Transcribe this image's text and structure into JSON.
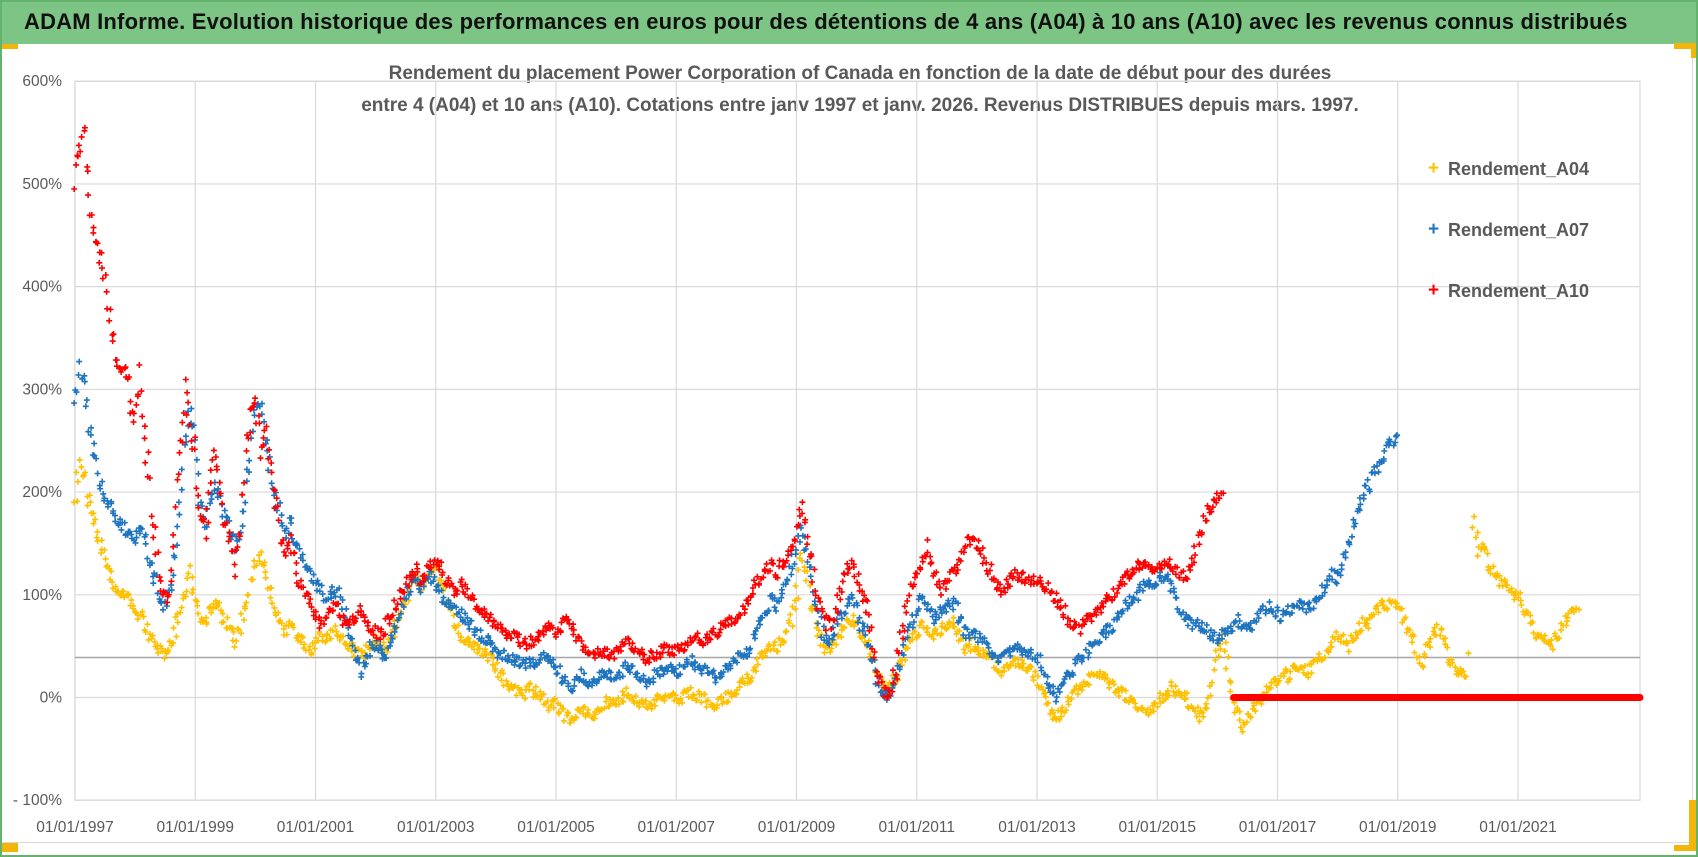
{
  "header": {
    "title": "ADAM Informe. Evolution historique des performances en euros pour des détentions de 4 ans (A04) à 10 ans (A10) avec les revenus connus distribués"
  },
  "colors": {
    "header_green": "#7cc584",
    "frame_green": "#63b36d",
    "gold_accent": "#f2b50a",
    "grid": "#d9d9d9",
    "reference_line": "#a6a6a6",
    "axis_text": "#595959",
    "title_text": "#595959"
  },
  "chart_data": {
    "type": "scatter",
    "title_line1": "Rendement du placement Power Corporation of Canada en fonction de la date de début pour des durées",
    "title_line2": "entre 4 (A04) et 10 ans (A10). Cotations entre janv 1997 et janv. 2026. Revenus DISTRIBUES depuis mars. 1997.",
    "marker": "plus",
    "grid": true,
    "legend_position": "right",
    "x_axis": {
      "tick_labels": [
        "01/01/1997",
        "01/01/1999",
        "01/01/2001",
        "01/01/2003",
        "01/01/2005",
        "01/01/2007",
        "01/01/2009",
        "01/01/2011",
        "01/01/2013",
        "01/01/2015",
        "01/01/2017",
        "01/01/2019",
        "01/01/2021"
      ],
      "start_year": 1997,
      "tick_interval_years": 2,
      "max_year_visible": 2023.0
    },
    "y_axis": {
      "tick_labels": [
        "600%",
        "500%",
        "400%",
        "300%",
        "200%",
        "100%",
        "0%",
        "- 100%"
      ],
      "tick_values": [
        600,
        500,
        400,
        300,
        200,
        100,
        0,
        -100
      ],
      "unit": "%",
      "min": -100,
      "max": 600
    },
    "reference_line_pct": 39,
    "a10_pending_zero_line": {
      "value_pct": 0,
      "from": "2016-04",
      "to": "chart-right-edge",
      "color": "#ff0000"
    },
    "series": [
      {
        "name": "Rendement_A04",
        "color": "#ffc000",
        "start": "1997-01",
        "interval": "monthly",
        "values": [
          195,
          225,
          210,
          185,
          170,
          150,
          130,
          120,
          110,
          105,
          100,
          95,
          90,
          80,
          70,
          60,
          50,
          45,
          40,
          50,
          65,
          85,
          105,
          120,
          100,
          80,
          70,
          85,
          95,
          85,
          75,
          65,
          55,
          70,
          90,
          110,
          130,
          135,
          120,
          100,
          85,
          75,
          65,
          70,
          60,
          55,
          50,
          45,
          55,
          60,
          58,
          62,
          65,
          60,
          55,
          50,
          45,
          40,
          45,
          50,
          55,
          50,
          45,
          55,
          70,
          85,
          95,
          110,
          120,
          105,
          110,
          120,
          125,
          115,
          100,
          85,
          70,
          60,
          55,
          50,
          48,
          45,
          42,
          40,
          30,
          22,
          15,
          10,
          6,
          2,
          5,
          8,
          4,
          0,
          -4,
          -8,
          -5,
          -12,
          -18,
          -22,
          -15,
          -10,
          -14,
          -18,
          -12,
          -8,
          -5,
          -8,
          -5,
          0,
          5,
          2,
          -2,
          -6,
          -10,
          -8,
          -4,
          0,
          4,
          1,
          -2,
          0,
          3,
          6,
          2,
          0,
          -3,
          -6,
          -8,
          -4,
          0,
          4,
          8,
          12,
          16,
          22,
          30,
          38,
          45,
          52,
          48,
          55,
          65,
          78,
          95,
          143,
          120,
          90,
          70,
          55,
          45,
          50,
          58,
          66,
          72,
          76,
          70,
          60,
          52,
          38,
          25,
          15,
          10,
          15,
          22,
          35,
          48,
          58,
          64,
          70,
          66,
          58,
          62,
          66,
          70,
          74,
          66,
          56,
          48,
          52,
          48,
          44,
          40,
          36,
          30,
          26,
          28,
          32,
          35,
          32,
          28,
          25,
          20,
          10,
          0,
          -15,
          -20,
          -12,
          -5,
          2,
          8,
          12,
          16,
          20,
          24,
          20,
          16,
          12,
          8,
          4,
          0,
          -4,
          -8,
          -12,
          -15,
          -10,
          -5,
          0,
          5,
          10,
          6,
          2,
          -2,
          -8,
          -14,
          -20,
          -10,
          20,
          45,
          58,
          30,
          5,
          -15,
          -28,
          -20,
          -12,
          -5,
          0,
          6,
          12,
          18,
          24,
          20,
          26,
          32,
          28,
          24,
          30,
          36,
          42,
          48,
          54,
          60,
          56,
          50,
          58,
          66,
          74,
          70,
          78,
          86,
          92,
          88,
          95,
          90,
          80,
          70,
          55,
          42,
          36,
          48,
          60,
          68,
          55,
          40,
          30,
          25,
          20,
          30,
          175,
          140,
          148,
          135,
          122,
          115,
          110,
          105,
          100,
          98,
          88,
          78,
          68,
          60,
          55,
          58,
          52,
          62,
          72,
          80,
          86,
          88
        ]
      },
      {
        "name": "Rendement_A07",
        "color": "#1f74c0",
        "start": "1997-01",
        "interval": "monthly",
        "values": [
          290,
          320,
          300,
          260,
          230,
          210,
          195,
          185,
          175,
          170,
          165,
          160,
          155,
          165,
          150,
          130,
          115,
          100,
          90,
          105,
          140,
          190,
          250,
          285,
          240,
          190,
          170,
          190,
          210,
          195,
          175,
          160,
          150,
          165,
          195,
          230,
          280,
          288,
          260,
          225,
          195,
          175,
          160,
          170,
          155,
          140,
          130,
          120,
          115,
          105,
          95,
          100,
          105,
          95,
          80,
          60,
          40,
          25,
          35,
          50,
          50,
          42,
          38,
          50,
          68,
          85,
          100,
          112,
          118,
          108,
          112,
          118,
          110,
          100,
          95,
          90,
          85,
          80,
          75,
          70,
          65,
          60,
          58,
          55,
          45,
          42,
          40,
          38,
          36,
          34,
          32,
          34,
          36,
          38,
          40,
          38,
          30,
          22,
          15,
          10,
          18,
          22,
          18,
          14,
          18,
          22,
          25,
          22,
          20,
          25,
          30,
          28,
          24,
          20,
          16,
          18,
          22,
          26,
          30,
          27,
          25,
          28,
          32,
          35,
          30,
          28,
          25,
          22,
          20,
          24,
          28,
          32,
          36,
          40,
          45,
          55,
          65,
          75,
          85,
          95,
          90,
          100,
          115,
          130,
          145,
          161,
          140,
          110,
          85,
          65,
          55,
          60,
          70,
          80,
          90,
          95,
          85,
          70,
          60,
          40,
          20,
          5,
          0,
          8,
          20,
          40,
          60,
          75,
          85,
          95,
          90,
          75,
          80,
          85,
          90,
          95,
          85,
          70,
          60,
          65,
          60,
          55,
          50,
          45,
          40,
          38,
          42,
          45,
          48,
          46,
          44,
          42,
          40,
          30,
          15,
          5,
          0,
          8,
          18,
          28,
          35,
          40,
          45,
          50,
          55,
          60,
          65,
          70,
          78,
          85,
          90,
          95,
          100,
          108,
          112,
          108,
          112,
          118,
          115,
          105,
          95,
          85,
          75,
          70,
          72,
          68,
          64,
          60,
          58,
          62,
          66,
          70,
          75,
          72,
          68,
          72,
          78,
          84,
          90,
          86,
          82,
          78,
          82,
          88,
          94,
          90,
          86,
          92,
          98,
          105,
          112,
          120,
          115,
          130,
          150,
          170,
          185,
          195,
          205,
          215,
          225,
          235,
          245,
          250,
          255
        ]
      },
      {
        "name": "Rendement_A10",
        "color": "#ff0000",
        "start": "1997-01",
        "interval": "monthly",
        "values": [
          505,
          535,
          550,
          470,
          450,
          430,
          400,
          370,
          340,
          310,
          330,
          290,
          270,
          310,
          250,
          200,
          160,
          120,
          95,
          110,
          180,
          250,
          300,
          270,
          230,
          180,
          160,
          200,
          240,
          210,
          170,
          150,
          130,
          170,
          230,
          280,
          285,
          240,
          260,
          230,
          190,
          160,
          140,
          150,
          130,
          110,
          100,
          90,
          80,
          70,
          75,
          85,
          90,
          80,
          70,
          75,
          80,
          85,
          75,
          70,
          65,
          60,
          70,
          80,
          90,
          100,
          110,
          120,
          125,
          115,
          120,
          130,
          135,
          125,
          115,
          105,
          100,
          110,
          105,
          95,
          90,
          85,
          80,
          75,
          70,
          68,
          65,
          60,
          58,
          55,
          52,
          55,
          58,
          62,
          66,
          70,
          60,
          70,
          78,
          70,
          58,
          50,
          44,
          40,
          42,
          45,
          42,
          40,
          45,
          50,
          55,
          50,
          46,
          42,
          38,
          40,
          42,
          45,
          47,
          44,
          45,
          48,
          52,
          55,
          58,
          55,
          58,
          62,
          65,
          70,
          72,
          75,
          80,
          85,
          90,
          100,
          110,
          120,
          125,
          130,
          120,
          130,
          140,
          150,
          160,
          182,
          160,
          130,
          100,
          80,
          70,
          75,
          90,
          110,
          125,
          130,
          120,
          100,
          90,
          60,
          30,
          10,
          0,
          10,
          30,
          60,
          90,
          110,
          120,
          135,
          145,
          130,
          115,
          105,
          110,
          120,
          130,
          140,
          150,
          158,
          150,
          140,
          130,
          120,
          110,
          105,
          110,
          115,
          120,
          118,
          115,
          112,
          115,
          112,
          108,
          100,
          95,
          90,
          80,
          70,
          65,
          70,
          75,
          80,
          85,
          90,
          95,
          100,
          108,
          112,
          118,
          122,
          128,
          132,
          128,
          122,
          125,
          130,
          135,
          128,
          122,
          118,
          123,
          135,
          150,
          165,
          180,
          190,
          195,
          202
        ]
      }
    ]
  }
}
